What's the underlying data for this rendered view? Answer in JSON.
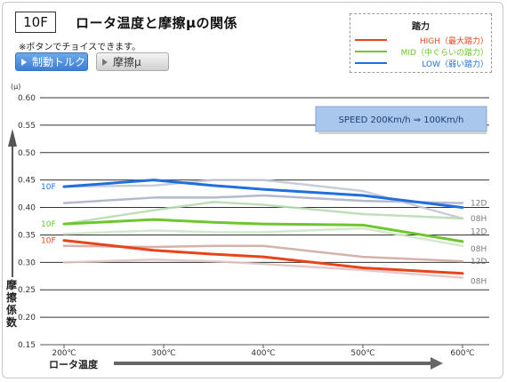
{
  "header": {
    "badge": "10F",
    "title": "ロータ温度と摩擦μの関係",
    "note": "※ボタンでチョイスできます。"
  },
  "buttons": {
    "torque": "制動トルク",
    "mu": "摩擦μ"
  },
  "legend": {
    "title": "踏力",
    "items": [
      {
        "label": "HIGH（最大踏力）",
        "color": "#e8441c"
      },
      {
        "label": "MID（中ぐらいの踏力）",
        "color": "#6cc62c"
      },
      {
        "label": "LOW（弱い踏力）",
        "color": "#1f6fe0"
      }
    ]
  },
  "callout": "SPEED  200Km/h ⇒ 100Km/h",
  "chart_data": {
    "type": "line",
    "ylabel_unit": "(μ)",
    "ylabel": "摩擦係数",
    "xlabel": "ロータ温度",
    "categories": [
      "200℃",
      "300℃",
      "400℃",
      "500℃",
      "600℃"
    ],
    "ytick_labels": [
      "0.60",
      "0.55",
      "0.50",
      "0.45",
      "0.40",
      "0.35",
      "0.30",
      "0.25",
      "0.20",
      "0.15"
    ],
    "ylim": [
      0.15,
      0.6
    ],
    "xlim": [
      200,
      600
    ],
    "grid": true,
    "series": [
      {
        "name": "10F",
        "color": "#1f6fe0",
        "group": "LOW",
        "x": [
          200,
          290,
          350,
          400,
          500,
          600
        ],
        "values": [
          0.438,
          0.45,
          0.44,
          0.433,
          0.422,
          0.4
        ]
      },
      {
        "name": "12D",
        "color": "#aab2c6",
        "group": "LOW",
        "x": [
          200,
          290,
          350,
          400,
          500,
          600
        ],
        "values": [
          0.408,
          0.418,
          0.418,
          0.422,
          0.412,
          0.408
        ]
      },
      {
        "name": "08H",
        "color": "#c2c8d6",
        "group": "LOW",
        "x": [
          200,
          290,
          350,
          400,
          500,
          600
        ],
        "values": [
          0.438,
          0.44,
          0.45,
          0.45,
          0.43,
          0.38
        ]
      },
      {
        "name": "10F",
        "color": "#6cc62c",
        "group": "MID",
        "x": [
          200,
          290,
          350,
          400,
          500,
          600
        ],
        "values": [
          0.37,
          0.378,
          0.373,
          0.37,
          0.368,
          0.338
        ]
      },
      {
        "name": "12D",
        "color": "#b9dab0",
        "group": "MID",
        "x": [
          200,
          290,
          350,
          400,
          500,
          600
        ],
        "values": [
          0.37,
          0.395,
          0.41,
          0.405,
          0.388,
          0.38
        ]
      },
      {
        "name": "08H",
        "color": "#cfe6c8",
        "group": "MID",
        "x": [
          200,
          290,
          350,
          400,
          500,
          600
        ],
        "values": [
          0.352,
          0.358,
          0.355,
          0.355,
          0.362,
          0.33
        ]
      },
      {
        "name": "10F",
        "color": "#e8441c",
        "group": "HIGH",
        "x": [
          200,
          290,
          350,
          400,
          500,
          600
        ],
        "values": [
          0.34,
          0.322,
          0.315,
          0.31,
          0.29,
          0.28
        ]
      },
      {
        "name": "12D",
        "color": "#d2a8a0",
        "group": "HIGH",
        "x": [
          200,
          290,
          350,
          400,
          500,
          600
        ],
        "values": [
          0.33,
          0.328,
          0.33,
          0.33,
          0.31,
          0.302
        ]
      },
      {
        "name": "08H",
        "color": "#e0c4c0",
        "group": "HIGH",
        "x": [
          200,
          290,
          350,
          400,
          500,
          600
        ],
        "values": [
          0.3,
          0.305,
          0.302,
          0.297,
          0.286,
          0.272
        ]
      }
    ],
    "line_labels": [
      {
        "text": "10F",
        "color": "#1f6fe0",
        "side": "left",
        "y": 0.438
      },
      {
        "text": "10F",
        "color": "#6cc62c",
        "side": "left",
        "y": 0.37
      },
      {
        "text": "10F",
        "color": "#e8441c",
        "side": "left",
        "y": 0.34
      },
      {
        "text": "12D",
        "color": "#7a7a7a",
        "side": "right",
        "y": 0.408
      },
      {
        "text": "08H",
        "color": "#7a7a7a",
        "side": "right",
        "y": 0.38
      },
      {
        "text": "12D",
        "color": "#7a7a7a",
        "side": "right",
        "y": 0.356
      },
      {
        "text": "08H",
        "color": "#7a7a7a",
        "side": "right",
        "y": 0.325
      },
      {
        "text": "12D",
        "color": "#7a7a7a",
        "side": "right",
        "y": 0.302
      },
      {
        "text": "08H",
        "color": "#7a7a7a",
        "side": "right",
        "y": 0.266
      }
    ]
  }
}
